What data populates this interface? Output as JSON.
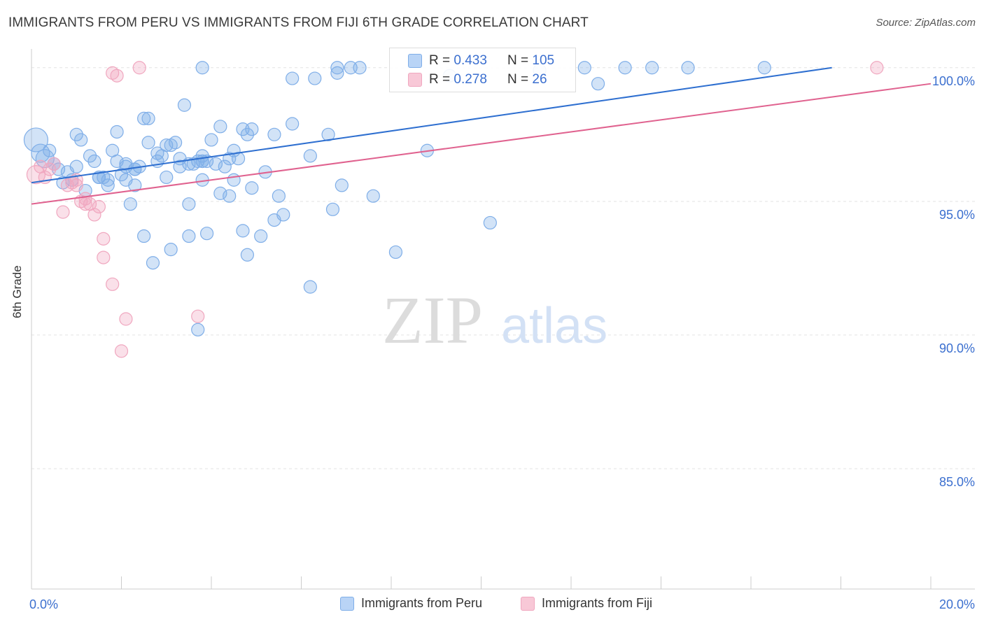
{
  "title": "IMMIGRANTS FROM PERU VS IMMIGRANTS FROM FIJI 6TH GRADE CORRELATION CHART",
  "source": "Source: ZipAtlas.com",
  "watermark": {
    "zip": "ZIP",
    "atlas": "atlas"
  },
  "colors": {
    "blue": "#7faee8",
    "blue_line": "#2e6fd0",
    "pink": "#f0a7bf",
    "pink_line": "#e0628f",
    "axis_text": "#3b6fcf"
  },
  "stats": [
    {
      "r_label": "R =",
      "r_value": "0.433",
      "n_label": "N =",
      "n_value": "105"
    },
    {
      "r_label": "R =",
      "r_value": "0.278",
      "n_label": "N =",
      "n_value": "26"
    }
  ],
  "legend": [
    "Immigrants from Peru",
    "Immigrants from Fiji"
  ],
  "chart_data": {
    "type": "scatter",
    "title": "IMMIGRANTS FROM PERU VS IMMIGRANTS FROM FIJI 6TH GRADE CORRELATION CHART",
    "xlabel": "",
    "ylabel": "6th Grade",
    "xlim": [
      0,
      20
    ],
    "ylim": [
      80.5,
      100.7
    ],
    "x_tick_labels": [
      "0.0%",
      "20.0%"
    ],
    "y_ticks": [
      85,
      90,
      95,
      100
    ],
    "y_tick_labels": [
      "85.0%",
      "90.0%",
      "95.0%",
      "100.0%"
    ],
    "series": [
      {
        "name": "Immigrants from Peru",
        "color": "#7faee8",
        "trend": {
          "x": [
            0.0,
            17.8
          ],
          "y": [
            95.7,
            100.0
          ]
        },
        "points": [
          [
            0.1,
            97.3,
            3
          ],
          [
            0.2,
            96.8,
            2
          ],
          [
            0.3,
            96.6,
            2
          ],
          [
            0.4,
            96.9,
            1
          ],
          [
            0.5,
            96.4,
            1
          ],
          [
            0.6,
            96.2,
            1
          ],
          [
            0.7,
            95.7,
            1
          ],
          [
            0.8,
            96.1,
            1
          ],
          [
            0.9,
            95.8,
            1
          ],
          [
            1.0,
            97.5,
            1
          ],
          [
            1.0,
            96.3,
            1
          ],
          [
            1.1,
            97.3,
            1
          ],
          [
            1.2,
            95.4,
            1
          ],
          [
            1.3,
            96.7,
            1
          ],
          [
            1.4,
            96.5,
            1
          ],
          [
            1.5,
            95.9,
            1
          ],
          [
            1.5,
            95.9,
            1
          ],
          [
            1.6,
            95.9,
            1
          ],
          [
            1.7,
            95.8,
            1
          ],
          [
            1.7,
            95.6,
            1
          ],
          [
            1.8,
            96.9,
            1
          ],
          [
            1.9,
            97.6,
            1
          ],
          [
            1.9,
            96.5,
            1
          ],
          [
            2.0,
            96.0,
            1
          ],
          [
            2.1,
            96.3,
            1
          ],
          [
            2.1,
            96.4,
            1
          ],
          [
            2.1,
            95.8,
            1
          ],
          [
            2.2,
            94.9,
            1
          ],
          [
            2.3,
            96.2,
            1
          ],
          [
            2.3,
            96.2,
            1
          ],
          [
            2.3,
            95.6,
            1
          ],
          [
            2.4,
            96.3,
            1
          ],
          [
            2.5,
            93.7,
            1
          ],
          [
            2.5,
            98.1,
            1
          ],
          [
            2.6,
            97.2,
            1
          ],
          [
            2.6,
            98.1,
            1
          ],
          [
            2.7,
            92.7,
            1
          ],
          [
            2.8,
            96.8,
            1
          ],
          [
            2.8,
            96.5,
            1
          ],
          [
            2.9,
            96.7,
            1
          ],
          [
            3.0,
            95.9,
            1
          ],
          [
            3.0,
            97.1,
            1
          ],
          [
            3.1,
            93.2,
            1
          ],
          [
            3.1,
            97.1,
            1
          ],
          [
            3.2,
            97.2,
            1
          ],
          [
            3.3,
            96.3,
            1
          ],
          [
            3.3,
            96.6,
            1
          ],
          [
            3.4,
            98.6,
            1
          ],
          [
            3.5,
            93.7,
            1
          ],
          [
            3.5,
            94.9,
            1
          ],
          [
            3.5,
            96.4,
            1
          ],
          [
            3.6,
            96.4,
            1
          ],
          [
            3.7,
            96.5,
            1
          ],
          [
            3.7,
            90.2,
            1
          ],
          [
            3.8,
            96.5,
            1
          ],
          [
            3.8,
            100.0,
            1
          ],
          [
            3.8,
            96.5,
            1
          ],
          [
            3.8,
            96.7,
            1
          ],
          [
            3.8,
            95.8,
            1
          ],
          [
            3.9,
            96.5,
            1
          ],
          [
            3.9,
            93.8,
            1
          ],
          [
            4.0,
            97.3,
            1
          ],
          [
            4.1,
            96.4,
            1
          ],
          [
            4.2,
            97.8,
            1
          ],
          [
            4.2,
            95.3,
            1
          ],
          [
            4.3,
            96.3,
            1
          ],
          [
            4.4,
            95.2,
            1
          ],
          [
            4.4,
            96.6,
            1
          ],
          [
            4.5,
            95.8,
            1
          ],
          [
            4.5,
            96.9,
            1
          ],
          [
            4.6,
            96.6,
            1
          ],
          [
            4.7,
            97.7,
            1
          ],
          [
            4.7,
            93.9,
            1
          ],
          [
            4.8,
            97.5,
            1
          ],
          [
            4.8,
            93.0,
            1
          ],
          [
            4.9,
            97.7,
            1
          ],
          [
            4.9,
            95.5,
            1
          ],
          [
            5.1,
            93.7,
            1
          ],
          [
            5.2,
            96.1,
            1
          ],
          [
            5.4,
            97.5,
            1
          ],
          [
            5.4,
            94.3,
            1
          ],
          [
            5.5,
            95.2,
            1
          ],
          [
            5.6,
            94.5,
            1
          ],
          [
            5.8,
            99.6,
            1
          ],
          [
            5.8,
            97.9,
            1
          ],
          [
            6.2,
            91.8,
            1
          ],
          [
            6.2,
            96.7,
            1
          ],
          [
            6.3,
            99.6,
            1
          ],
          [
            6.6,
            97.5,
            1
          ],
          [
            6.7,
            94.7,
            1
          ],
          [
            6.8,
            99.8,
            1
          ],
          [
            6.8,
            100.0,
            1
          ],
          [
            6.9,
            95.6,
            1
          ],
          [
            7.1,
            100.0,
            1
          ],
          [
            7.3,
            100.0,
            1
          ],
          [
            7.6,
            95.2,
            1
          ],
          [
            8.1,
            93.1,
            1
          ],
          [
            8.8,
            96.9,
            1
          ],
          [
            9.3,
            99.7,
            1
          ],
          [
            10.2,
            94.2,
            1
          ],
          [
            11.3,
            99.9,
            1
          ],
          [
            12.3,
            100.0,
            1
          ],
          [
            12.6,
            99.4,
            1
          ],
          [
            13.2,
            100.0,
            1
          ],
          [
            13.8,
            100.0,
            1
          ],
          [
            14.6,
            100.0,
            1
          ],
          [
            16.3,
            100.0,
            1
          ]
        ]
      },
      {
        "name": "Immigrants from Fiji",
        "color": "#f0a7bf",
        "trend": {
          "x": [
            0.0,
            20.0
          ],
          "y": [
            94.9,
            99.4
          ]
        },
        "points": [
          [
            0.1,
            96.0,
            2
          ],
          [
            0.2,
            96.3,
            1
          ],
          [
            0.3,
            95.9,
            1
          ],
          [
            0.4,
            96.2,
            1
          ],
          [
            0.5,
            96.4,
            1
          ],
          [
            0.7,
            94.6,
            1
          ],
          [
            0.8,
            95.6,
            1
          ],
          [
            0.9,
            95.7,
            1
          ],
          [
            1.0,
            95.6,
            1
          ],
          [
            1.0,
            95.8,
            1
          ],
          [
            1.1,
            95.0,
            1
          ],
          [
            1.2,
            95.1,
            1
          ],
          [
            1.2,
            94.9,
            1
          ],
          [
            1.3,
            94.9,
            1
          ],
          [
            1.4,
            94.5,
            1
          ],
          [
            1.5,
            94.8,
            1
          ],
          [
            1.6,
            93.6,
            1
          ],
          [
            1.6,
            92.9,
            1
          ],
          [
            1.8,
            91.9,
            1
          ],
          [
            1.8,
            99.8,
            1
          ],
          [
            1.9,
            99.7,
            1
          ],
          [
            2.0,
            89.4,
            1
          ],
          [
            2.1,
            90.6,
            1
          ],
          [
            2.4,
            100.0,
            1
          ],
          [
            3.7,
            90.7,
            1
          ],
          [
            18.8,
            100.0,
            1
          ]
        ]
      }
    ]
  }
}
